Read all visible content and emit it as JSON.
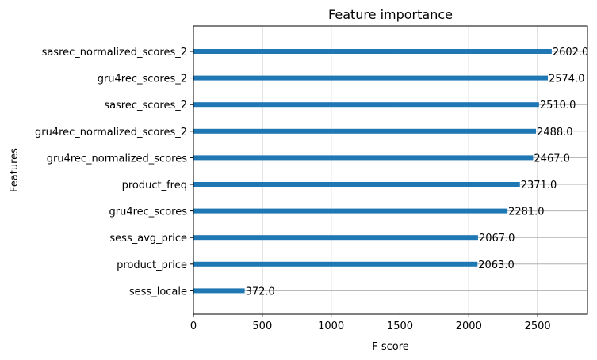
{
  "chart_data": {
    "type": "bar",
    "orientation": "horizontal",
    "title": "Feature importance",
    "xlabel": "F score",
    "ylabel": "Features",
    "xlim": [
      0,
      2862
    ],
    "xticks": [
      0,
      500,
      1000,
      1500,
      2000,
      2500
    ],
    "grid": true,
    "bar_color": "#1f77b4",
    "categories": [
      "sasrec_normalized_scores_2",
      "gru4rec_scores_2",
      "sasrec_scores_2",
      "gru4rec_normalized_scores_2",
      "gru4rec_normalized_scores",
      "product_freq",
      "gru4rec_scores",
      "sess_avg_price",
      "product_price",
      "sess_locale"
    ],
    "values": [
      2602.0,
      2574.0,
      2510.0,
      2488.0,
      2467.0,
      2371.0,
      2281.0,
      2067.0,
      2063.0,
      372.0
    ],
    "value_labels": [
      "2602.0",
      "2574.0",
      "2510.0",
      "2488.0",
      "2467.0",
      "2371.0",
      "2281.0",
      "2067.0",
      "2063.0",
      "372.0"
    ]
  }
}
